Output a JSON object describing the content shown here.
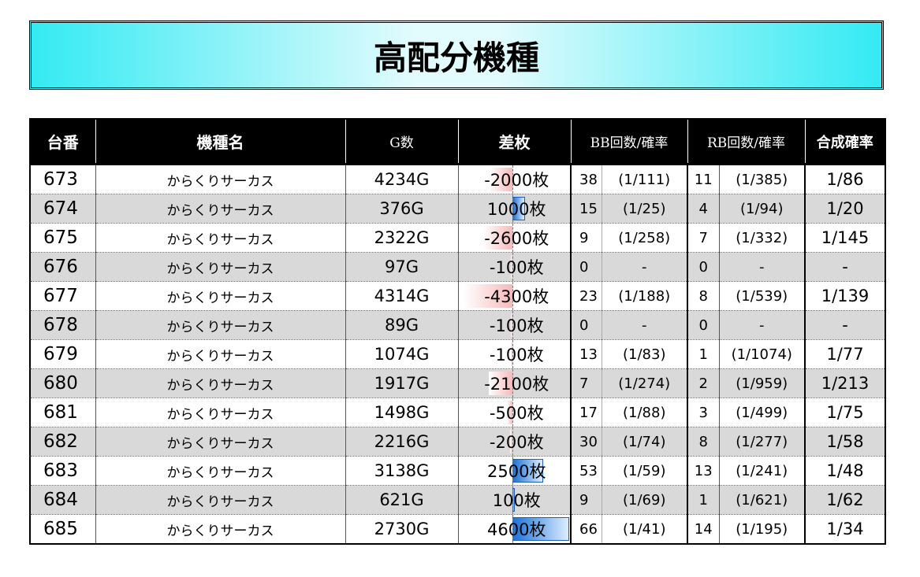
{
  "title": "高配分機種",
  "headers": {
    "num": "台番",
    "model": "機種名",
    "games": "G数",
    "diff": "差枚",
    "bb": "BB回数/確率",
    "rb": "RB回数/確率",
    "combined": "合成確率"
  },
  "rows": [
    {
      "num": "673",
      "model": "からくりサーカス",
      "games": "4234G",
      "diff": "-2000枚",
      "diff_value": -2000,
      "bb_count": "38",
      "bb_prob": "(1/111)",
      "rb_count": "11",
      "rb_prob": "(1/385)",
      "combined": "1/86"
    },
    {
      "num": "674",
      "model": "からくりサーカス",
      "games": "376G",
      "diff": "1000枚",
      "diff_value": 1000,
      "bb_count": "15",
      "bb_prob": "(1/25)",
      "rb_count": "4",
      "rb_prob": "(1/94)",
      "combined": "1/20"
    },
    {
      "num": "675",
      "model": "からくりサーカス",
      "games": "2322G",
      "diff": "-2600枚",
      "diff_value": -2600,
      "bb_count": "9",
      "bb_prob": "(1/258)",
      "rb_count": "7",
      "rb_prob": "(1/332)",
      "combined": "1/145"
    },
    {
      "num": "676",
      "model": "からくりサーカス",
      "games": "97G",
      "diff": "-100枚",
      "diff_value": -100,
      "bb_count": "0",
      "bb_prob": "-",
      "rb_count": "0",
      "rb_prob": "-",
      "combined": "-"
    },
    {
      "num": "677",
      "model": "からくりサーカス",
      "games": "4314G",
      "diff": "-4300枚",
      "diff_value": -4300,
      "bb_count": "23",
      "bb_prob": "(1/188)",
      "rb_count": "8",
      "rb_prob": "(1/539)",
      "combined": "1/139"
    },
    {
      "num": "678",
      "model": "からくりサーカス",
      "games": "89G",
      "diff": "-100枚",
      "diff_value": -100,
      "bb_count": "0",
      "bb_prob": "-",
      "rb_count": "0",
      "rb_prob": "-",
      "combined": "-"
    },
    {
      "num": "679",
      "model": "からくりサーカス",
      "games": "1074G",
      "diff": "-100枚",
      "diff_value": -100,
      "bb_count": "13",
      "bb_prob": "(1/83)",
      "rb_count": "1",
      "rb_prob": "(1/1074)",
      "combined": "1/77"
    },
    {
      "num": "680",
      "model": "からくりサーカス",
      "games": "1917G",
      "diff": "-2100枚",
      "diff_value": -2100,
      "bb_count": "7",
      "bb_prob": "(1/274)",
      "rb_count": "2",
      "rb_prob": "(1/959)",
      "combined": "1/213"
    },
    {
      "num": "681",
      "model": "からくりサーカス",
      "games": "1498G",
      "diff": "-500枚",
      "diff_value": -500,
      "bb_count": "17",
      "bb_prob": "(1/88)",
      "rb_count": "3",
      "rb_prob": "(1/499)",
      "combined": "1/75"
    },
    {
      "num": "682",
      "model": "からくりサーカス",
      "games": "2216G",
      "diff": "-200枚",
      "diff_value": -200,
      "bb_count": "30",
      "bb_prob": "(1/74)",
      "rb_count": "8",
      "rb_prob": "(1/277)",
      "combined": "1/58"
    },
    {
      "num": "683",
      "model": "からくりサーカス",
      "games": "3138G",
      "diff": "2500枚",
      "diff_value": 2500,
      "bb_count": "53",
      "bb_prob": "(1/59)",
      "rb_count": "13",
      "rb_prob": "(1/241)",
      "combined": "1/48"
    },
    {
      "num": "684",
      "model": "からくりサーカス",
      "games": "621G",
      "diff": "100枚",
      "diff_value": 100,
      "bb_count": "9",
      "bb_prob": "(1/69)",
      "rb_count": "1",
      "rb_prob": "(1/621)",
      "combined": "1/62"
    },
    {
      "num": "685",
      "model": "からくりサーカス",
      "games": "2730G",
      "diff": "4600枚",
      "diff_value": 4600,
      "bb_count": "66",
      "bb_prob": "(1/41)",
      "rb_count": "14",
      "rb_prob": "(1/195)",
      "combined": "1/34"
    }
  ],
  "colors": {
    "header_bg": "#000000",
    "row_alt": "#d9d9d9",
    "positive_bar": "#1e73d6",
    "negative_bar": "#f6b9b9",
    "title_cyan": "#33eaf3"
  }
}
